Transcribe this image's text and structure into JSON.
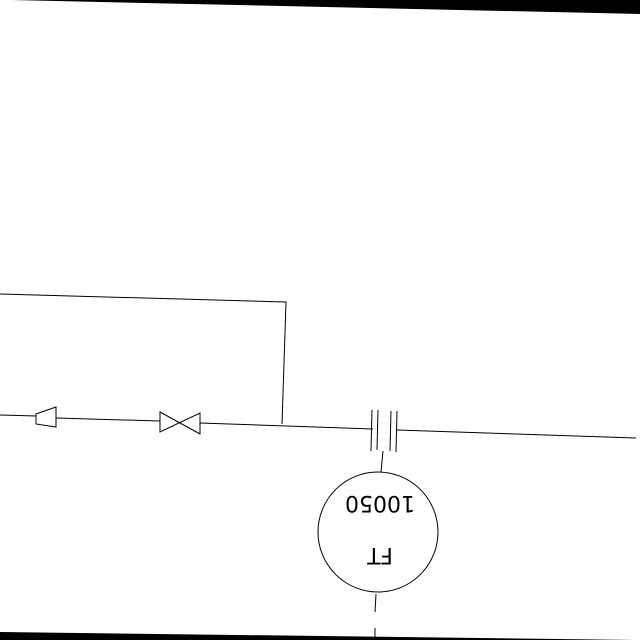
{
  "diagram": {
    "instrument": {
      "type_code": "FT",
      "loop_number": "10050"
    }
  }
}
